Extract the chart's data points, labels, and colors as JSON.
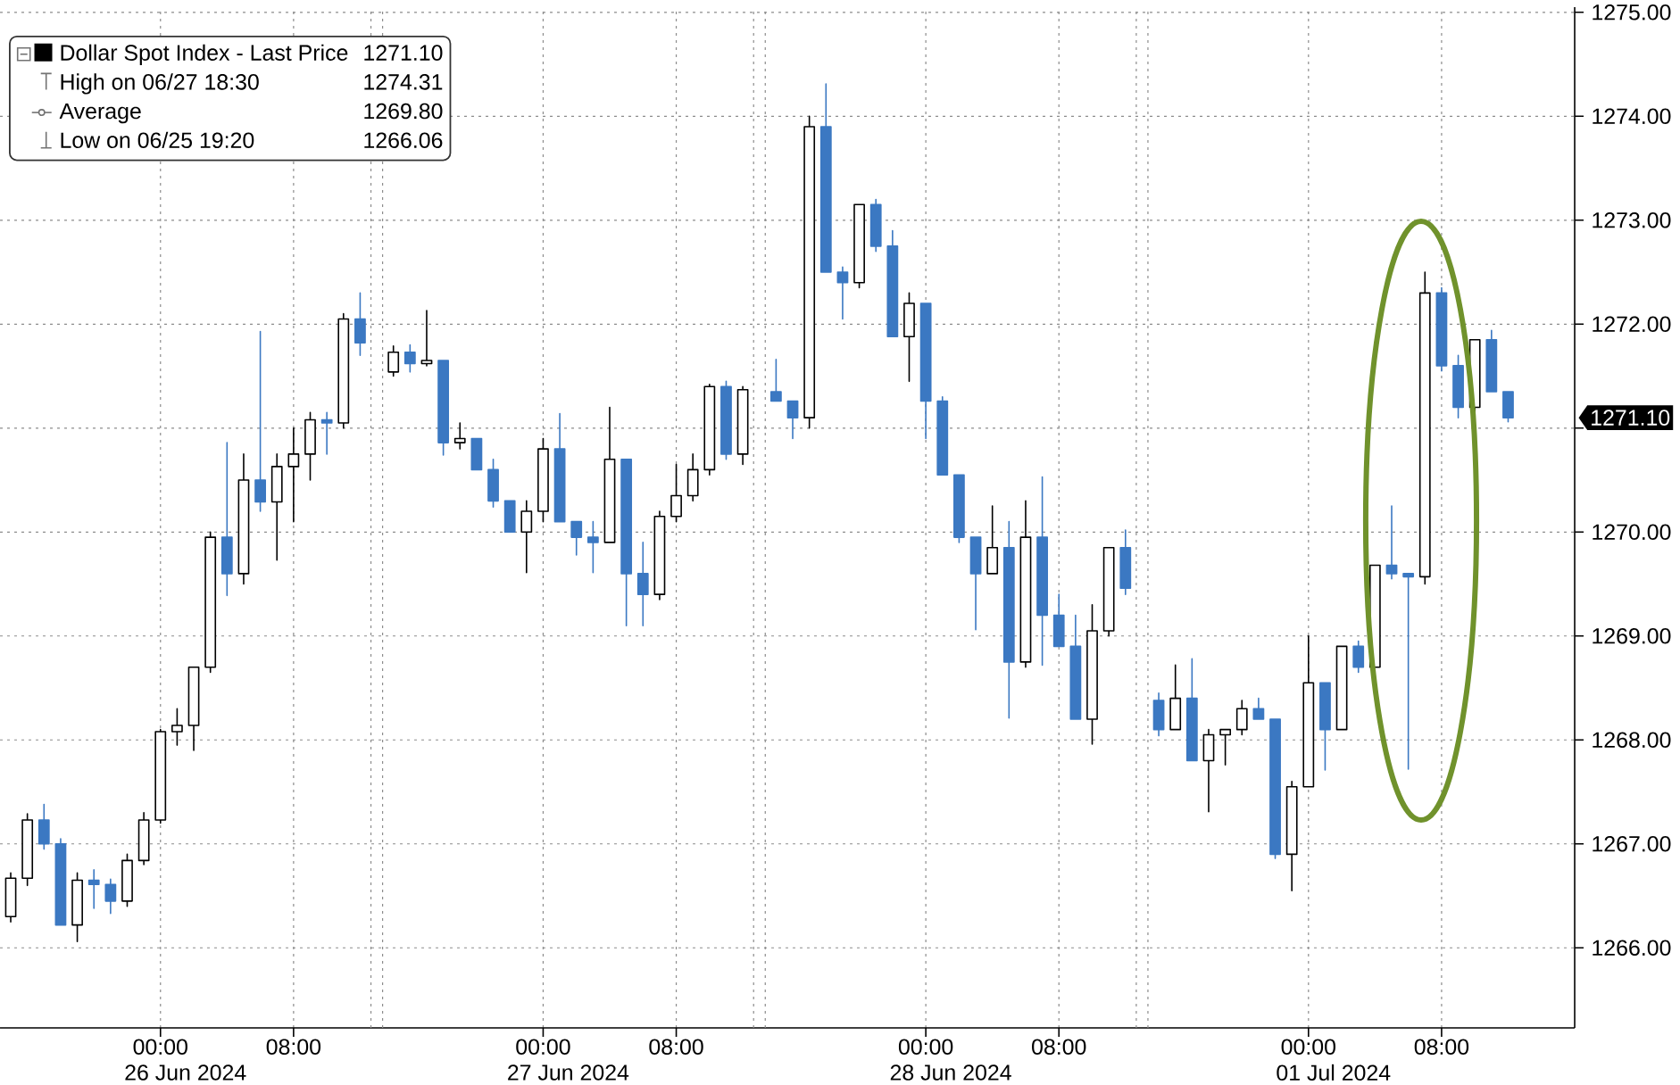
{
  "chart_data": {
    "type": "candlestick",
    "categories": [
      null,
      null,
      null,
      null,
      null,
      null,
      null,
      null,
      null,
      "00:00",
      null,
      null,
      null,
      null,
      null,
      null,
      null,
      "08:00",
      null,
      null,
      null,
      null,
      null,
      null,
      null,
      null,
      null,
      null,
      null,
      null,
      null,
      null,
      "00:00",
      null,
      null,
      null,
      null,
      null,
      null,
      null,
      "08:00",
      null,
      null,
      null,
      null,
      null,
      null,
      null,
      null,
      null,
      null,
      null,
      null,
      null,
      null,
      "00:00",
      null,
      null,
      null,
      null,
      null,
      null,
      null,
      "08:00",
      null,
      null,
      null,
      null,
      null,
      null,
      null,
      null,
      null,
      null,
      null,
      null,
      null,
      null,
      "00:00",
      null,
      null,
      null,
      null,
      null,
      null,
      null,
      "08:00",
      null,
      null,
      null,
      null
    ],
    "series": [
      {
        "name": "Dollar Spot Index - Last Price",
        "color": "#000000",
        "ohlc": [
          [
            1266.3,
            1266.72,
            1266.25,
            1266.67
          ],
          [
            1266.67,
            1267.29,
            1266.6,
            1267.23
          ],
          [
            1267.23,
            1267.38,
            1266.95,
            1267.0
          ],
          [
            1267.0,
            1267.05,
            1266.22,
            1266.22
          ],
          [
            1266.22,
            1266.72,
            1266.06,
            1266.65
          ],
          [
            1266.65,
            1266.75,
            1266.38,
            1266.61
          ],
          [
            1266.61,
            1266.66,
            1266.33,
            1266.45
          ],
          [
            1266.45,
            1266.9,
            1266.4,
            1266.84
          ],
          [
            1266.84,
            1267.3,
            1266.8,
            1267.23
          ],
          [
            1267.23,
            1268.1,
            1267.2,
            1268.08
          ],
          [
            1268.08,
            1268.3,
            1267.95,
            1268.14
          ],
          [
            1268.14,
            1268.7,
            1267.9,
            1268.7
          ],
          [
            1268.7,
            1270.0,
            1268.65,
            1269.95
          ],
          [
            1269.95,
            1270.86,
            1269.39,
            1269.6
          ],
          [
            1269.6,
            1270.75,
            1269.5,
            1270.5
          ],
          [
            1270.5,
            1271.93,
            1270.2,
            1270.29
          ],
          [
            1270.29,
            1270.75,
            1269.73,
            1270.63
          ],
          [
            1270.63,
            1271.0,
            1270.1,
            1270.75
          ],
          [
            1270.75,
            1271.15,
            1270.5,
            1271.08
          ],
          [
            1271.08,
            1271.15,
            1270.75,
            1271.05
          ],
          [
            1271.05,
            1272.1,
            1271.0,
            1272.05
          ],
          [
            1272.05,
            1272.3,
            1271.7,
            1271.82
          ],
          null,
          [
            1271.54,
            1271.79,
            1271.5,
            1271.73
          ],
          [
            1271.73,
            1271.8,
            1271.54,
            1271.62
          ],
          [
            1271.62,
            1272.13,
            1271.6,
            1271.65
          ],
          [
            1271.65,
            1271.65,
            1270.74,
            1270.86
          ],
          [
            1270.86,
            1271.05,
            1270.8,
            1270.9
          ],
          [
            1270.9,
            1270.9,
            1270.6,
            1270.6
          ],
          [
            1270.6,
            1270.7,
            1270.24,
            1270.3
          ],
          [
            1270.3,
            1270.3,
            1270.0,
            1270.0
          ],
          [
            1270.0,
            1270.3,
            1269.61,
            1270.2
          ],
          [
            1270.2,
            1270.9,
            1270.1,
            1270.8
          ],
          [
            1270.8,
            1271.14,
            1270.1,
            1270.1
          ],
          [
            1270.1,
            1270.1,
            1269.78,
            1269.95
          ],
          [
            1269.95,
            1270.1,
            1269.61,
            1269.9
          ],
          [
            1269.9,
            1271.2,
            1269.9,
            1270.7
          ],
          [
            1270.7,
            1270.7,
            1269.1,
            1269.6
          ],
          [
            1269.6,
            1269.9,
            1269.1,
            1269.4
          ],
          [
            1269.4,
            1270.2,
            1269.35,
            1270.15
          ],
          [
            1270.15,
            1270.65,
            1270.1,
            1270.35
          ],
          [
            1270.35,
            1270.75,
            1270.3,
            1270.6
          ],
          [
            1270.6,
            1271.42,
            1270.55,
            1271.4
          ],
          [
            1271.4,
            1271.45,
            1270.7,
            1270.75
          ],
          [
            1270.75,
            1271.4,
            1270.65,
            1271.37
          ],
          null,
          [
            1271.35,
            1271.66,
            1271.26,
            1271.26
          ],
          [
            1271.26,
            1271.26,
            1270.9,
            1271.1
          ],
          [
            1271.1,
            1274.0,
            1271.0,
            1273.9
          ],
          [
            1273.9,
            1274.31,
            1272.5,
            1272.5
          ],
          [
            1272.5,
            1272.55,
            1272.05,
            1272.4
          ],
          [
            1272.4,
            1273.15,
            1272.35,
            1273.15
          ],
          [
            1273.15,
            1273.2,
            1272.7,
            1272.75
          ],
          [
            1272.75,
            1272.9,
            1271.88,
            1271.88
          ],
          [
            1271.88,
            1272.3,
            1271.45,
            1272.2
          ],
          [
            1272.2,
            1272.2,
            1270.9,
            1271.26
          ],
          [
            1271.26,
            1271.3,
            1270.55,
            1270.55
          ],
          [
            1270.55,
            1270.55,
            1269.9,
            1269.95
          ],
          [
            1269.95,
            1269.95,
            1269.06,
            1269.6
          ],
          [
            1269.6,
            1270.25,
            1269.6,
            1269.85
          ],
          [
            1269.85,
            1270.1,
            1268.21,
            1268.75
          ],
          [
            1268.75,
            1270.3,
            1268.7,
            1269.95
          ],
          [
            1269.95,
            1270.53,
            1268.72,
            1269.2
          ],
          [
            1269.2,
            1269.4,
            1268.9,
            1268.9
          ],
          [
            1268.9,
            1269.2,
            1268.2,
            1268.2
          ],
          [
            1268.2,
            1269.3,
            1267.96,
            1269.05
          ],
          [
            1269.05,
            1269.85,
            1269.0,
            1269.85
          ],
          [
            1269.85,
            1270.02,
            1269.4,
            1269.46
          ],
          null,
          [
            1268.38,
            1268.45,
            1268.04,
            1268.1
          ],
          [
            1268.1,
            1268.72,
            1268.1,
            1268.4
          ],
          [
            1268.4,
            1268.78,
            1267.8,
            1267.8
          ],
          [
            1267.8,
            1268.1,
            1267.31,
            1268.05
          ],
          [
            1268.05,
            1268.1,
            1267.76,
            1268.1
          ],
          [
            1268.1,
            1268.38,
            1268.05,
            1268.3
          ],
          [
            1268.3,
            1268.4,
            1268.2,
            1268.2
          ],
          [
            1268.2,
            1268.2,
            1266.86,
            1266.9
          ],
          [
            1266.9,
            1267.6,
            1266.55,
            1267.55
          ],
          [
            1267.55,
            1269.0,
            1267.55,
            1268.55
          ],
          [
            1268.55,
            1268.55,
            1267.71,
            1268.1
          ],
          [
            1268.1,
            1268.9,
            1268.1,
            1268.9
          ],
          [
            1268.9,
            1268.95,
            1268.65,
            1268.7
          ],
          [
            1268.7,
            1269.68,
            1268.7,
            1269.68
          ],
          [
            1269.68,
            1270.25,
            1269.55,
            1269.6
          ],
          [
            1269.6,
            1269.6,
            1267.72,
            1269.57
          ],
          [
            1269.57,
            1272.5,
            1269.5,
            1272.3
          ],
          [
            1272.3,
            1272.35,
            1271.55,
            1271.6
          ],
          [
            1271.6,
            1271.7,
            1271.1,
            1271.2
          ],
          [
            1271.2,
            1271.85,
            1271.15,
            1271.85
          ],
          [
            1271.85,
            1271.94,
            1271.35,
            1271.35
          ],
          [
            1271.35,
            1271.35,
            1271.06,
            1271.1
          ]
        ],
        "colors": [
          "#000000",
          "#000000",
          "#3b78c2",
          "#3b78c2",
          "#000000",
          "#3b78c2",
          "#3b78c2",
          "#000000",
          "#000000",
          "#000000",
          "#000000",
          "#000000",
          "#000000",
          "#3b78c2",
          "#000000",
          "#3b78c2",
          "#000000",
          "#000000",
          "#000000",
          "#3b78c2",
          "#000000",
          "#3b78c2",
          null,
          "#000000",
          "#3b78c2",
          "#000000",
          "#3b78c2",
          "#000000",
          "#3b78c2",
          "#3b78c2",
          "#3b78c2",
          "#000000",
          "#000000",
          "#3b78c2",
          "#3b78c2",
          "#3b78c2",
          "#000000",
          "#3b78c2",
          "#3b78c2",
          "#000000",
          "#000000",
          "#000000",
          "#000000",
          "#3b78c2",
          "#000000",
          null,
          "#3b78c2",
          "#3b78c2",
          "#000000",
          "#3b78c2",
          "#3b78c2",
          "#000000",
          "#3b78c2",
          "#3b78c2",
          "#000000",
          "#3b78c2",
          "#3b78c2",
          "#3b78c2",
          "#3b78c2",
          "#000000",
          "#3b78c2",
          "#000000",
          "#3b78c2",
          "#3b78c2",
          "#3b78c2",
          "#000000",
          "#000000",
          "#3b78c2",
          null,
          "#3b78c2",
          "#000000",
          "#3b78c2",
          "#000000",
          "#000000",
          "#000000",
          "#3b78c2",
          "#3b78c2",
          "#000000",
          "#000000",
          "#3b78c2",
          "#000000",
          "#3b78c2",
          "#000000",
          "#3b78c2",
          "#3b78c2",
          "#000000",
          "#3b78c2",
          "#3b78c2",
          "#000000",
          "#3b78c2",
          "#3b78c2"
        ]
      }
    ],
    "ylim": [
      1265.23,
      1275.05
    ],
    "yticks": [
      {
        "value": 1266,
        "label": "1266.00"
      },
      {
        "value": 1267,
        "label": "1267.00"
      },
      {
        "value": 1268,
        "label": "1268.00"
      },
      {
        "value": 1269,
        "label": "1269.00"
      },
      {
        "value": 1270,
        "label": "1270.00"
      },
      {
        "value": 1271,
        "label": null
      },
      {
        "value": 1272,
        "label": "1272.00"
      },
      {
        "value": 1273,
        "label": "1273.00"
      },
      {
        "value": 1274,
        "label": "1274.00"
      },
      {
        "value": 1275,
        "label": "1275.00"
      }
    ],
    "grid": true,
    "legend": "top left",
    "annotations": [
      "1271.10",
      "High on 06/27 18:30",
      "1274.31",
      "Average",
      "1269.80",
      "Low on 06/25 19:20",
      "1266.06",
      "1271.10",
      "26 Jun 2024",
      "27 Jun 2024",
      "28 Jun 2024",
      "01 Jul 2024"
    ]
  }
}
